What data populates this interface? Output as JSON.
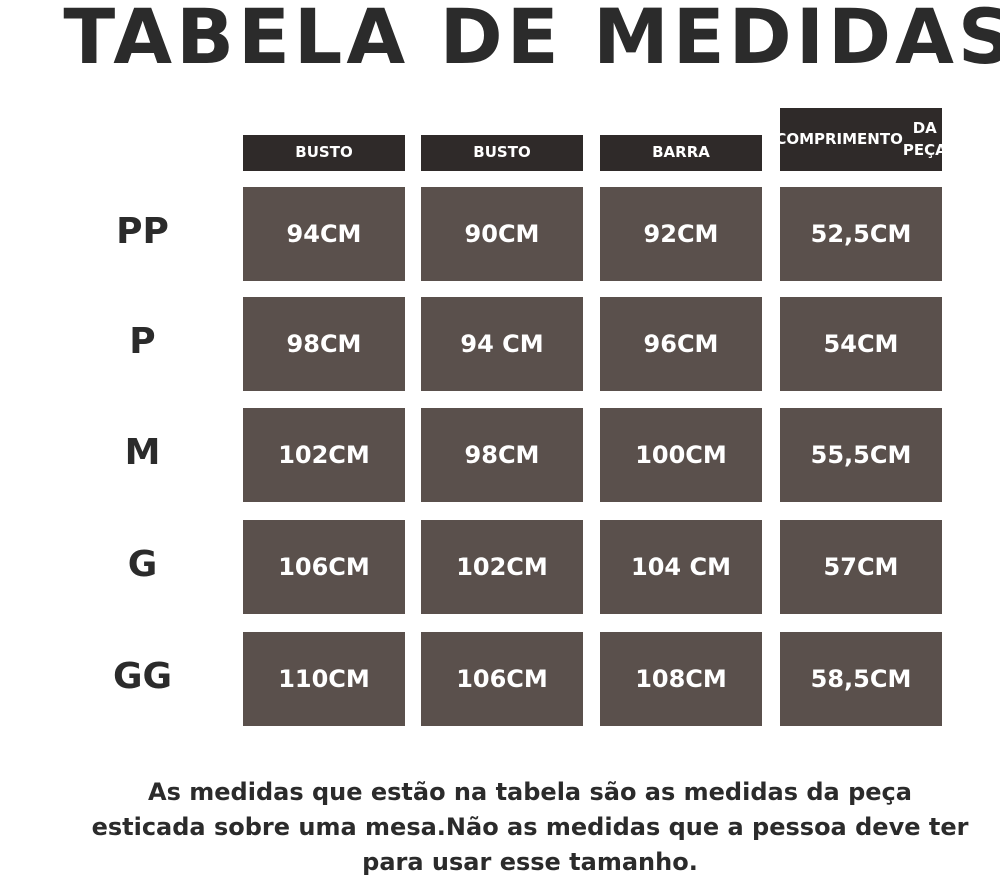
{
  "title": "TABELA DE MEDIDAS",
  "columns": [
    "BUSTO",
    "BUSTO",
    "BARRA",
    "COMPRIMENTO DA PEÇA"
  ],
  "rows": [
    {
      "size": "PP",
      "values": [
        "94CM",
        "90CM",
        "92CM",
        "52,5CM"
      ]
    },
    {
      "size": "P",
      "values": [
        "98CM",
        "94 CM",
        "96CM",
        "54CM"
      ]
    },
    {
      "size": "M",
      "values": [
        "102CM",
        "98CM",
        "100CM",
        "55,5CM"
      ]
    },
    {
      "size": "G",
      "values": [
        "106CM",
        "102CM",
        "104 CM",
        "57CM"
      ]
    },
    {
      "size": "GG",
      "values": [
        "110CM",
        "106CM",
        "108CM",
        "58,5CM"
      ]
    }
  ],
  "footnote": [
    "As medidas que estão na tabela são as medidas da peça",
    "esticada sobre uma mesa.Não as medidas que a pessoa deve ter",
    "para usar esse tamanho."
  ],
  "colors": {
    "header": "#2f2a29",
    "cell": "#5a504c",
    "text": "#2b2b2b"
  }
}
